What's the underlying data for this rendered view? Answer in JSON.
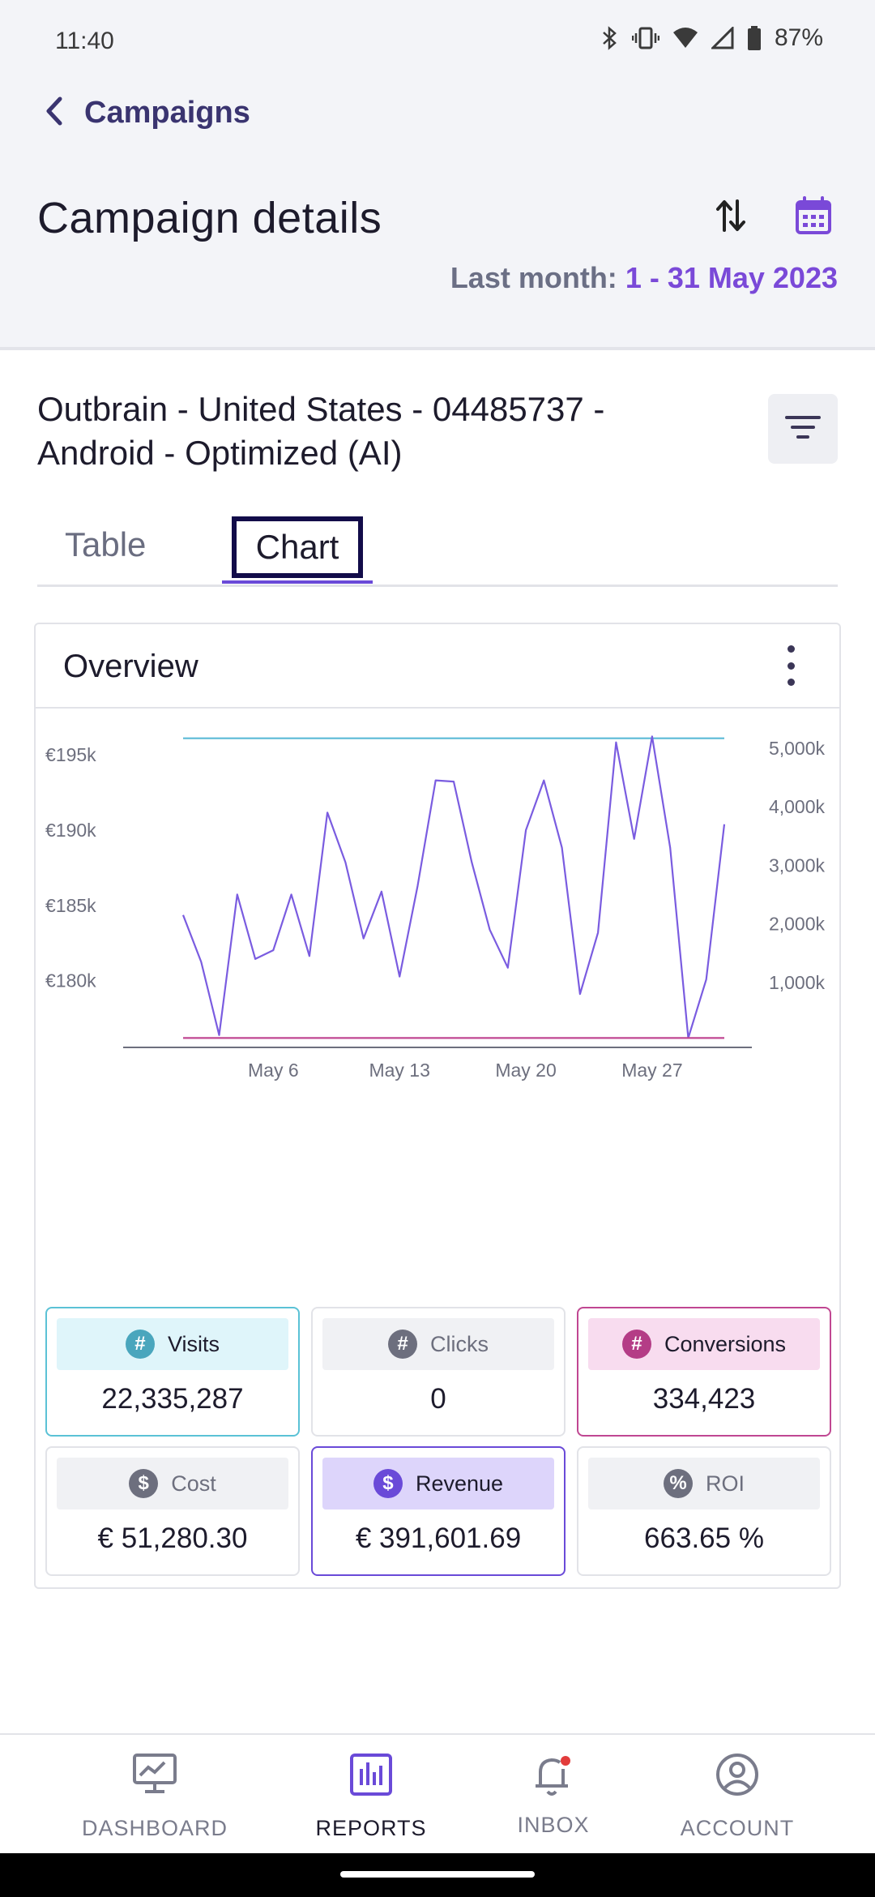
{
  "status_bar": {
    "time": "11:40",
    "battery": "87%",
    "icons": [
      "bluetooth-icon",
      "vibrate-icon",
      "wifi-icon",
      "signal-icon",
      "battery-icon"
    ]
  },
  "header": {
    "back_label": "Campaigns",
    "title": "Campaign details",
    "date_prefix": "Last month:",
    "date_value": "1 - 31 May 2023"
  },
  "campaign": {
    "title": "Outbrain - United States - 04485737 - Android - Optimized (AI)"
  },
  "tabs": [
    {
      "label": "Table",
      "active": false
    },
    {
      "label": "Chart",
      "active": true
    }
  ],
  "overview": {
    "title": "Overview"
  },
  "chart_data": {
    "type": "line",
    "x_tick_labels": [
      "May 6",
      "May 13",
      "May 20",
      "May 27"
    ],
    "y_left_ticks": [
      "€180k",
      "€185k",
      "€190k",
      "€195k"
    ],
    "y_right_ticks": [
      "1,000k",
      "2,000k",
      "3,000k",
      "4,000k",
      "5,000k"
    ],
    "x": [
      "May 1",
      "May 2",
      "May 3",
      "May 4",
      "May 5",
      "May 6",
      "May 7",
      "May 8",
      "May 9",
      "May 10",
      "May 11",
      "May 12",
      "May 13",
      "May 14",
      "May 15",
      "May 16",
      "May 17",
      "May 18",
      "May 19",
      "May 20",
      "May 21",
      "May 22",
      "May 23",
      "May 24",
      "May 25",
      "May 26",
      "May 27",
      "May 28",
      "May 29",
      "May 30",
      "May 31"
    ],
    "series": [
      {
        "axis": "left",
        "color": "#5bbad6",
        "values": [
          196100,
          196100,
          196100,
          196100,
          196100,
          196100,
          196100,
          196100,
          196100,
          196100,
          196100,
          196100,
          196100,
          196100,
          196100,
          196100,
          196100,
          196100,
          196100,
          196100,
          196100,
          196100,
          196100,
          196100,
          196100,
          196100,
          196100,
          196100,
          196100,
          196100,
          196100
        ]
      },
      {
        "axis": "right",
        "color": "#7a5ce0",
        "values": [
          2150,
          1350,
          100,
          2500,
          1400,
          1550,
          2500,
          1450,
          3900,
          3050,
          1750,
          2550,
          1100,
          2650,
          4450,
          4430,
          3050,
          1900,
          1250,
          3600,
          4450,
          3300,
          800,
          1850,
          5100,
          3450,
          5200,
          3300,
          50,
          1050,
          3700
        ]
      },
      {
        "axis": "right",
        "color": "#c04792",
        "values": [
          50,
          50,
          50,
          50,
          50,
          50,
          50,
          50,
          50,
          50,
          50,
          50,
          50,
          50,
          50,
          50,
          50,
          50,
          50,
          50,
          50,
          50,
          50,
          50,
          50,
          50,
          50,
          50,
          50,
          50,
          50
        ]
      }
    ],
    "ylim_left": [
      176000,
      197000
    ],
    "ylim_right": [
      0,
      5400
    ]
  },
  "metrics": [
    {
      "key": "visits",
      "label": "Visits",
      "icon_symbol": "#",
      "icon": "hash-icon",
      "value": "22,335,287"
    },
    {
      "key": "clicks",
      "label": "Clicks",
      "icon_symbol": "#",
      "icon": "hash-icon",
      "value": "0"
    },
    {
      "key": "conv",
      "label": "Conversions",
      "icon_symbol": "#",
      "icon": "hash-icon",
      "value": "334,423"
    },
    {
      "key": "cost",
      "label": "Cost",
      "icon_symbol": "$",
      "icon": "dollar-icon",
      "value": "€ 51,280.30"
    },
    {
      "key": "rev",
      "label": "Revenue",
      "icon_symbol": "$",
      "icon": "dollar-icon",
      "value": "€ 391,601.69"
    },
    {
      "key": "roi",
      "label": "ROI",
      "icon_symbol": "%",
      "icon": "percent-icon",
      "value": "663.65 %"
    }
  ],
  "bottom_nav": [
    {
      "label": "DASHBOARD",
      "icon": "monitor-chart-icon",
      "active": false
    },
    {
      "label": "REPORTS",
      "icon": "bar-chart-icon",
      "active": true
    },
    {
      "label": "INBOX",
      "icon": "bell-icon",
      "active": false
    },
    {
      "label": "ACCOUNT",
      "icon": "user-circle-icon",
      "active": false
    }
  ],
  "colors": {
    "accent": "#6a4ad8",
    "visits": "#5bc2d6",
    "conversions": "#c04792",
    "tab_focus": "#120c49"
  }
}
